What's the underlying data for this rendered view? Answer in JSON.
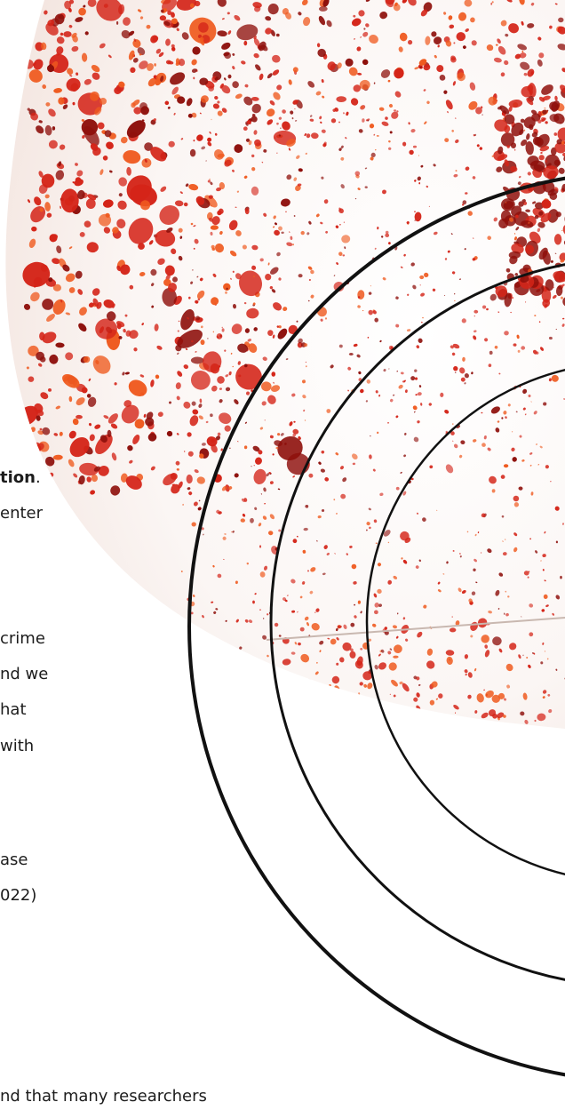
{
  "text_fragments": {
    "line_1_bold": "tion",
    "line_1_end": ".",
    "line_2": "enter",
    "line_3": "crime",
    "line_4": "nd we",
    "line_5": "hat",
    "line_6": "with",
    "line_7": "ase",
    "line_8": "022)",
    "line_9": "nd that many researchers"
  },
  "colors": {
    "blood_dark": "#8e0f0b",
    "blood_red": "#d42418",
    "blood_orange": "#ef5a1f",
    "ring_stroke": "#111111",
    "text": "#1c1c1c"
  }
}
